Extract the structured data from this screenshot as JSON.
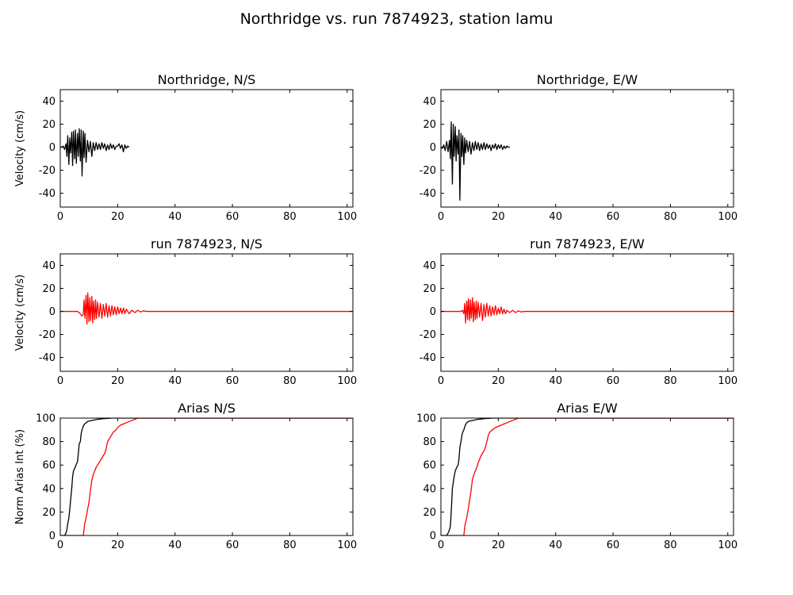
{
  "figure": {
    "title": "Northridge vs. run 7874923, station lamu"
  },
  "chart_data": [
    {
      "id": "ns-recorded",
      "type": "line",
      "title": "Northridge, N/S",
      "xlabel": "",
      "ylabel": "Velocity (cm/s)",
      "xlim": [
        0,
        102
      ],
      "ylim": [
        -52,
        50
      ],
      "xticks": [
        0,
        20,
        40,
        60,
        80,
        100
      ],
      "yticks": [
        -40,
        -20,
        0,
        20,
        40
      ],
      "grid": false,
      "series": [
        {
          "color": "#000000",
          "x": [
            0,
            0.5,
            1,
            1.5,
            2,
            2.3,
            2.6,
            3,
            3.3,
            3.6,
            4,
            4.3,
            4.6,
            5,
            5.3,
            5.6,
            6,
            6.3,
            6.6,
            7,
            7.3,
            7.6,
            8,
            8.3,
            8.6,
            9,
            9.5,
            10,
            10.5,
            11,
            11.5,
            12,
            12.5,
            13,
            13.5,
            14,
            14.5,
            15,
            15.5,
            16,
            16.5,
            17,
            17.5,
            18,
            18.5,
            19,
            19.5,
            20,
            20.5,
            21,
            21.5,
            22,
            22.5,
            23,
            23.5,
            24
          ],
          "y": [
            0,
            0,
            1,
            -2,
            3,
            -8,
            10,
            -15,
            8,
            -5,
            13,
            -16,
            14,
            -10,
            15,
            -14,
            12,
            -8,
            16,
            -12,
            15,
            -25,
            14,
            -9,
            12,
            -13,
            6,
            -4,
            5,
            -8,
            4,
            -3,
            4,
            -2,
            3,
            -2,
            4,
            -1,
            3,
            -3,
            2,
            -2,
            3,
            -1,
            2,
            -2,
            1,
            1,
            3,
            -1,
            2,
            -4,
            2,
            -1,
            1,
            0
          ]
        }
      ]
    },
    {
      "id": "ew-recorded",
      "type": "line",
      "title": "Northridge, E/W",
      "xlabel": "",
      "ylabel": "",
      "xlim": [
        0,
        102
      ],
      "ylim": [
        -52,
        50
      ],
      "xticks": [
        0,
        20,
        40,
        60,
        80,
        100
      ],
      "yticks": [
        -40,
        -20,
        0,
        20,
        40
      ],
      "grid": false,
      "series": [
        {
          "color": "#000000",
          "x": [
            0,
            0.5,
            1,
            1.5,
            2,
            2.5,
            3,
            3.3,
            3.6,
            4,
            4.3,
            4.6,
            5,
            5.3,
            5.6,
            6,
            6.3,
            6.6,
            7,
            7.3,
            7.6,
            8,
            8.3,
            8.6,
            9,
            9.5,
            10,
            10.5,
            11,
            11.5,
            12,
            12.5,
            13,
            13.5,
            14,
            14.5,
            15,
            15.5,
            16,
            16.5,
            17,
            17.5,
            18,
            18.5,
            19,
            19.5,
            20,
            20.5,
            21,
            21.5,
            22,
            22.5,
            23,
            23.5,
            24
          ],
          "y": [
            0,
            -1,
            2,
            -3,
            5,
            -4,
            6,
            -10,
            22,
            -32,
            20,
            -8,
            18,
            -12,
            10,
            -6,
            15,
            -46,
            12,
            -8,
            10,
            -15,
            8,
            -5,
            6,
            -4,
            5,
            -6,
            4,
            -3,
            5,
            -2,
            4,
            -3,
            3,
            -2,
            4,
            -2,
            3,
            -1,
            2,
            -3,
            2,
            -1,
            3,
            -2,
            2,
            -1,
            2,
            -2,
            1,
            -1,
            1,
            0,
            0
          ]
        }
      ]
    },
    {
      "id": "ns-run",
      "type": "line",
      "title": "run 7874923, N/S",
      "xlabel": "",
      "ylabel": "Velocity (cm/s)",
      "xlim": [
        0,
        102
      ],
      "ylim": [
        -52,
        50
      ],
      "xticks": [
        0,
        20,
        40,
        60,
        80,
        100
      ],
      "yticks": [
        -40,
        -20,
        0,
        20,
        40
      ],
      "grid": false,
      "series": [
        {
          "color": "#ff0000",
          "x": [
            0,
            2,
            4,
            5,
            6,
            7,
            7.5,
            8,
            8.3,
            8.6,
            9,
            9.3,
            9.6,
            10,
            10.3,
            10.6,
            11,
            11.3,
            11.6,
            12,
            12.3,
            12.6,
            13,
            13.5,
            14,
            14.5,
            15,
            15.5,
            16,
            16.5,
            17,
            17.5,
            18,
            18.5,
            19,
            19.5,
            20,
            20.5,
            21,
            21.5,
            22,
            22.5,
            23,
            24,
            25,
            26,
            27,
            28,
            29,
            30,
            32,
            35,
            40,
            60,
            80,
            100,
            102
          ],
          "y": [
            0,
            0,
            0,
            0,
            0,
            -2,
            -4,
            -3,
            10,
            -6,
            14,
            -11,
            16,
            -9,
            12,
            -8,
            13,
            -10,
            9,
            -7,
            10,
            -6,
            8,
            -5,
            7,
            -6,
            6,
            -4,
            7,
            -5,
            5,
            -4,
            5,
            -3,
            4,
            -3,
            4,
            -2,
            3,
            -2,
            3,
            -2,
            2,
            -2,
            1,
            -1,
            1,
            -0.5,
            0.5,
            0,
            0,
            0,
            0,
            0,
            0,
            0,
            0
          ]
        }
      ]
    },
    {
      "id": "ew-run",
      "type": "line",
      "title": "run 7874923, E/W",
      "xlabel": "",
      "ylabel": "",
      "xlim": [
        0,
        102
      ],
      "ylim": [
        -52,
        50
      ],
      "xticks": [
        0,
        20,
        40,
        60,
        80,
        100
      ],
      "yticks": [
        -40,
        -20,
        0,
        20,
        40
      ],
      "grid": false,
      "series": [
        {
          "color": "#ff0000",
          "x": [
            0,
            2,
            4,
            6,
            7,
            7.5,
            8,
            8.3,
            8.6,
            9,
            9.3,
            9.6,
            10,
            10.3,
            10.6,
            11,
            11.3,
            11.6,
            12,
            12.3,
            12.6,
            13,
            13.5,
            14,
            14.5,
            15,
            15.5,
            16,
            16.5,
            17,
            17.5,
            18,
            18.5,
            19,
            19.5,
            20,
            20.5,
            21,
            21.5,
            22,
            22.5,
            23,
            24,
            25,
            26,
            27,
            28,
            29,
            30,
            35,
            40,
            60,
            80,
            100,
            102
          ],
          "y": [
            0,
            0,
            0,
            0,
            0,
            1,
            -2,
            7,
            -10,
            9,
            -7,
            11,
            -8,
            10,
            -6,
            12,
            -9,
            8,
            -7,
            9,
            -6,
            8,
            -5,
            7,
            -8,
            6,
            -5,
            7,
            -4,
            5,
            -4,
            4,
            -3,
            5,
            -3,
            3,
            -2,
            4,
            -2,
            2,
            -2,
            1,
            -1,
            1,
            -1,
            0.5,
            -0.5,
            0,
            0,
            0,
            0,
            0,
            0,
            0,
            0
          ]
        }
      ]
    },
    {
      "id": "arias-ns",
      "type": "line",
      "title": "Arias N/S",
      "xlabel": "",
      "ylabel": "Norm Arias Int (%)",
      "xlim": [
        0,
        102
      ],
      "ylim": [
        0,
        100
      ],
      "xticks": [
        0,
        20,
        40,
        60,
        80,
        100
      ],
      "yticks": [
        0,
        20,
        40,
        60,
        80,
        100
      ],
      "grid": false,
      "series": [
        {
          "color": "#000000",
          "x": [
            0,
            1.5,
            2,
            2.3,
            2.6,
            3,
            3.3,
            3.6,
            4,
            4.3,
            4.6,
            5,
            5.5,
            6,
            6.3,
            6.6,
            7,
            7.3,
            7.6,
            8,
            8.5,
            9,
            9.5,
            10,
            11,
            12,
            13,
            14,
            15,
            16,
            17,
            18,
            20,
            40,
            60,
            80,
            100,
            102
          ],
          "y": [
            0,
            0,
            2,
            5,
            10,
            15,
            22,
            30,
            40,
            50,
            55,
            57,
            60,
            63,
            70,
            78,
            80,
            87,
            90,
            93,
            95,
            96,
            97,
            97.5,
            98,
            98.5,
            99,
            99.2,
            99.5,
            99.7,
            99.8,
            100,
            100,
            100,
            100,
            100,
            100,
            100
          ]
        },
        {
          "color": "#ff0000",
          "x": [
            0,
            8,
            8.2,
            8.5,
            9,
            9.5,
            10,
            10.5,
            11,
            11.5,
            12,
            12.5,
            13,
            13.5,
            14,
            14.5,
            15,
            15.5,
            16,
            16.5,
            17,
            17.5,
            18,
            18.5,
            19,
            19.5,
            20,
            21,
            22,
            23,
            24,
            25,
            26,
            27,
            30,
            40,
            60,
            80,
            100,
            102
          ],
          "y": [
            0,
            0,
            3,
            10,
            15,
            22,
            28,
            38,
            47,
            52,
            55,
            58,
            60,
            62,
            64,
            66,
            68,
            70,
            74,
            80,
            82,
            84,
            86,
            88,
            89,
            90,
            92,
            94,
            95,
            96,
            97,
            98,
            99,
            100,
            100,
            100,
            100,
            100,
            100,
            100
          ]
        }
      ]
    },
    {
      "id": "arias-ew",
      "type": "line",
      "title": "Arias E/W",
      "xlabel": "",
      "ylabel": "",
      "xlim": [
        0,
        102
      ],
      "ylim": [
        0,
        100
      ],
      "xticks": [
        0,
        20,
        40,
        60,
        80,
        100
      ],
      "yticks": [
        0,
        20,
        40,
        60,
        80,
        100
      ],
      "grid": false,
      "series": [
        {
          "color": "#000000",
          "x": [
            0,
            2,
            2.5,
            3,
            3.3,
            3.6,
            4,
            4.3,
            4.6,
            5,
            5.5,
            6,
            6.3,
            6.6,
            7,
            7.3,
            7.6,
            8,
            8.5,
            9,
            9.5,
            10,
            11,
            12,
            13,
            14,
            15,
            16,
            17,
            18,
            20,
            40,
            60,
            80,
            100,
            102
          ],
          "y": [
            0,
            0,
            2,
            5,
            8,
            20,
            40,
            45,
            50,
            55,
            58,
            60,
            65,
            75,
            80,
            85,
            88,
            90,
            94,
            96,
            97,
            97.5,
            98,
            98.5,
            99,
            99.2,
            99.5,
            99.7,
            99.8,
            100,
            100,
            100,
            100,
            100,
            100,
            100
          ]
        },
        {
          "color": "#ff0000",
          "x": [
            0,
            8,
            8.2,
            8.5,
            9,
            9.5,
            10,
            10.5,
            11,
            11.5,
            12,
            12.5,
            13,
            13.5,
            14,
            14.5,
            15,
            15.5,
            16,
            16.5,
            17,
            18,
            19,
            20,
            21,
            22,
            23,
            24,
            25,
            26,
            27,
            30,
            40,
            60,
            80,
            100,
            102
          ],
          "y": [
            0,
            0,
            5,
            10,
            15,
            22,
            30,
            38,
            48,
            52,
            55,
            58,
            62,
            65,
            68,
            70,
            72,
            75,
            80,
            85,
            88,
            90,
            92,
            93,
            94,
            95,
            96,
            97,
            98,
            99,
            100,
            100,
            100,
            100,
            100,
            100,
            100
          ]
        }
      ]
    }
  ]
}
